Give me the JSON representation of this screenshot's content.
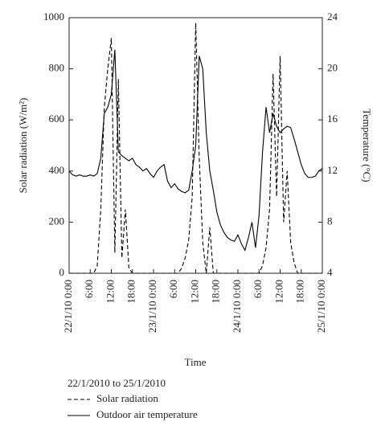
{
  "chart_data": {
    "type": "line",
    "xlabel": "Time",
    "ylabel": "Solar radiation (W/m²)",
    "y2label": "Temperature (°C)",
    "legend_title": "22/1/2010 to 25/1/2010",
    "legend_position": "bottom",
    "x": [
      0,
      1,
      2,
      3,
      4,
      5,
      6,
      7,
      8,
      9,
      10,
      11,
      12,
      13,
      14,
      15,
      16,
      17,
      18,
      19,
      20,
      21,
      22,
      23,
      24,
      25,
      26,
      27,
      28,
      29,
      30,
      31,
      32,
      33,
      34,
      35,
      36,
      37,
      38,
      39,
      40,
      41,
      42,
      43,
      44,
      45,
      46,
      47,
      48,
      49,
      50,
      51,
      52,
      53,
      54,
      55,
      56,
      57,
      58,
      59,
      60,
      61,
      62,
      63,
      64,
      65,
      66,
      67,
      68,
      69,
      70,
      71,
      72
    ],
    "xlim": [
      0,
      72
    ],
    "xticks": [
      {
        "value": 0,
        "label": "22/1/10 0:00"
      },
      {
        "value": 6,
        "label": "6:00"
      },
      {
        "value": 12,
        "label": "12:00"
      },
      {
        "value": 18,
        "label": "18:00"
      },
      {
        "value": 24,
        "label": "23/1/10 0:00"
      },
      {
        "value": 30,
        "label": "6:00"
      },
      {
        "value": 36,
        "label": "12:00"
      },
      {
        "value": 42,
        "label": "18:00"
      },
      {
        "value": 48,
        "label": "24/1/10 0:00"
      },
      {
        "value": 54,
        "label": "6:00"
      },
      {
        "value": 60,
        "label": "12:00"
      },
      {
        "value": 66,
        "label": "18:00"
      },
      {
        "value": 72,
        "label": "25/1/10 0:00"
      }
    ],
    "ylim": [
      0,
      1000
    ],
    "yticks": [
      0,
      200,
      400,
      600,
      800,
      1000
    ],
    "y2lim": [
      4,
      24
    ],
    "y2ticks": [
      4,
      8,
      12,
      16,
      20,
      24
    ],
    "series": [
      {
        "name": "Solar radiation",
        "color": "#000000",
        "line_style": "dashed",
        "values": [
          0,
          0,
          0,
          0,
          0,
          0,
          0,
          0,
          30,
          250,
          650,
          800,
          920,
          80,
          760,
          60,
          250,
          20,
          0,
          0,
          0,
          0,
          0,
          0,
          0,
          0,
          0,
          0,
          0,
          0,
          0,
          0,
          20,
          60,
          130,
          300,
          980,
          450,
          120,
          0,
          180,
          0,
          0,
          0,
          0,
          0,
          0,
          0,
          0,
          0,
          0,
          0,
          0,
          0,
          0,
          30,
          100,
          250,
          780,
          300,
          850,
          200,
          400,
          120,
          40,
          0,
          0,
          0,
          0,
          0,
          0,
          0,
          0
        ]
      },
      {
        "name": "Outdoor air temperature",
        "color": "#000000",
        "line_style": "solid",
        "axis": "y2",
        "values": [
          12.0,
          11.7,
          11.6,
          11.7,
          11.6,
          11.6,
          11.7,
          11.6,
          11.8,
          13,
          16.5,
          17,
          18,
          21.5,
          13.5,
          13.2,
          13,
          12.8,
          13,
          12.5,
          12.3,
          12,
          12.2,
          11.8,
          11.5,
          12,
          12.3,
          12.5,
          11.2,
          10.7,
          11,
          10.6,
          10.4,
          10.3,
          10.5,
          12,
          14,
          21,
          20,
          15,
          12,
          10.5,
          8.8,
          7.8,
          7.2,
          6.8,
          6.6,
          6.5,
          7,
          6.3,
          5.8,
          6.8,
          8,
          6,
          8.5,
          13.5,
          17,
          15,
          16.5,
          15.5,
          15,
          15.3,
          15.5,
          15.4,
          14.5,
          13.5,
          12.5,
          11.8,
          11.5,
          11.5,
          11.6,
          12,
          12.2
        ]
      }
    ]
  }
}
